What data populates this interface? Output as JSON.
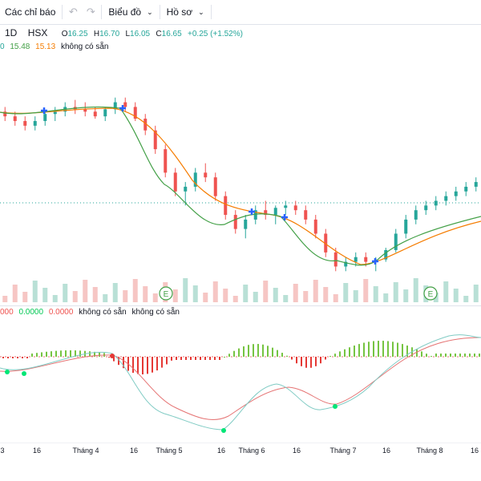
{
  "toolbar": {
    "indicators_label": "Các chỉ báo",
    "chart_menu_label": "Biểu đồ",
    "profile_menu_label": "Hồ sơ"
  },
  "symbol": {
    "interval": "1D",
    "exchange": "HSX",
    "open_label": "O",
    "open": "16.25",
    "high_label": "H",
    "high": "16.70",
    "low_label": "L",
    "low": "16.05",
    "close_label": "C",
    "close": "16.65",
    "change": "+0.25 (+1.52%)"
  },
  "ma_legend": {
    "prefix": "0",
    "ma_fast": "15.48",
    "ma_slow": "15.13",
    "na": "không có sẵn"
  },
  "macd_legend": {
    "v1": "000",
    "v2": "0.0000",
    "v3": "0.0000",
    "na1": "không có sẵn",
    "na2": "không có sẵn"
  },
  "event_marker_letter": "E",
  "colors": {
    "up": "#26a69a",
    "down": "#ef5350",
    "ma_fast": "#43a047",
    "ma_slow": "#f57c00",
    "volume_up": "#b9e0d6",
    "volume_down": "#f6c6c4",
    "cross_marker": "#2962ff",
    "macd_signal_line": "#e57373",
    "macd_line": "#80cbc4",
    "macd_point": "#00e676",
    "macd_hist_up": "#76c442",
    "macd_hist_down": "#e53935"
  },
  "chart_data": {
    "type": "candlestick",
    "x_ticks": [
      "3",
      "16",
      "Tháng 4",
      "16",
      "Tháng 5",
      "16",
      "Tháng 6",
      "16",
      "Tháng 7",
      "16",
      "Tháng 8",
      "16"
    ],
    "price_level": 16.25,
    "price_ohlc_sample": [
      [
        16.5,
        16.6,
        16.3,
        16.4
      ],
      [
        16.4,
        16.5,
        16.2,
        16.3
      ],
      [
        16.3,
        16.4,
        16.1,
        16.2
      ],
      [
        16.2,
        16.4,
        16.1,
        16.3
      ],
      [
        16.3,
        16.5,
        16.2,
        16.45
      ],
      [
        16.45,
        16.6,
        16.3,
        16.5
      ],
      [
        16.5,
        16.7,
        16.4,
        16.6
      ],
      [
        16.6,
        16.75,
        16.45,
        16.55
      ],
      [
        16.55,
        16.7,
        16.4,
        16.5
      ],
      [
        16.5,
        16.6,
        16.35,
        16.4
      ],
      [
        16.4,
        16.6,
        16.3,
        16.55
      ],
      [
        16.55,
        16.8,
        16.45,
        16.7
      ],
      [
        16.7,
        16.8,
        16.5,
        16.6
      ],
      [
        16.6,
        16.7,
        16.3,
        16.35
      ],
      [
        16.35,
        16.45,
        16.0,
        16.1
      ],
      [
        16.1,
        16.2,
        15.6,
        15.7
      ],
      [
        15.7,
        15.8,
        15.1,
        15.2
      ],
      [
        15.2,
        15.3,
        14.7,
        14.8
      ],
      [
        14.8,
        15.0,
        14.5,
        14.9
      ],
      [
        14.9,
        15.3,
        14.8,
        15.2
      ],
      [
        15.2,
        15.4,
        15.0,
        15.1
      ],
      [
        15.1,
        15.2,
        14.6,
        14.7
      ],
      [
        14.7,
        14.8,
        14.2,
        14.3
      ],
      [
        14.3,
        14.4,
        13.9,
        14.0
      ],
      [
        14.0,
        14.3,
        13.8,
        14.2
      ],
      [
        14.2,
        14.5,
        14.1,
        14.4
      ],
      [
        14.4,
        14.6,
        14.2,
        14.3
      ],
      [
        14.3,
        14.5,
        14.1,
        14.45
      ],
      [
        14.45,
        14.6,
        14.3,
        14.5
      ],
      [
        14.5,
        14.6,
        14.3,
        14.4
      ],
      [
        14.4,
        14.5,
        14.1,
        14.2
      ],
      [
        14.2,
        14.3,
        13.8,
        13.9
      ],
      [
        13.9,
        14.0,
        13.4,
        13.5
      ],
      [
        13.5,
        13.6,
        13.1,
        13.2
      ],
      [
        13.2,
        13.4,
        13.1,
        13.3
      ],
      [
        13.3,
        13.5,
        13.2,
        13.4
      ],
      [
        13.4,
        13.5,
        13.2,
        13.3
      ],
      [
        13.3,
        13.4,
        13.1,
        13.35
      ],
      [
        13.35,
        13.6,
        13.3,
        13.55
      ],
      [
        13.55,
        14.0,
        13.5,
        13.9
      ],
      [
        13.9,
        14.3,
        13.8,
        14.2
      ],
      [
        14.2,
        14.5,
        14.1,
        14.4
      ],
      [
        14.4,
        14.6,
        14.3,
        14.5
      ],
      [
        14.5,
        14.7,
        14.4,
        14.6
      ],
      [
        14.6,
        14.8,
        14.5,
        14.7
      ],
      [
        14.7,
        14.9,
        14.6,
        14.8
      ],
      [
        14.8,
        15.0,
        14.7,
        14.9
      ],
      [
        14.9,
        15.1,
        14.8,
        15.0
      ]
    ],
    "macd_points_count": 4
  }
}
